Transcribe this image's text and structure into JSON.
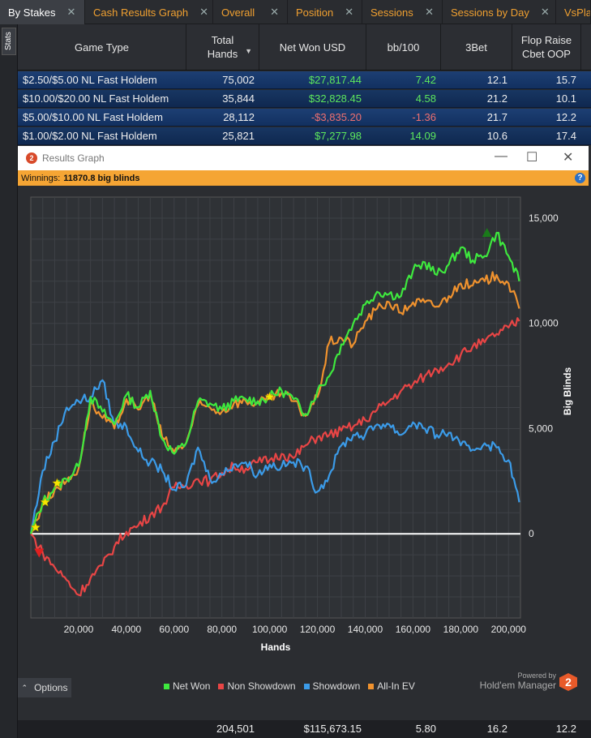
{
  "tabs": [
    {
      "label": "By Stakes",
      "active": true,
      "closable": true
    },
    {
      "label": "Cash Results Graph",
      "active": false,
      "closable": true
    },
    {
      "label": "Overall",
      "active": false,
      "closable": true
    },
    {
      "label": "Position",
      "active": false,
      "closable": true
    },
    {
      "label": "Sessions",
      "active": false,
      "closable": true
    },
    {
      "label": "Sessions by Day",
      "active": false,
      "closable": true
    },
    {
      "label": "VsPlay",
      "active": false,
      "closable": false
    }
  ],
  "sidebar": {
    "stats_label": "Stats"
  },
  "table": {
    "columns": [
      "Game Type",
      "Total Hands",
      "Net Won USD",
      "bb/100",
      "3Bet",
      "Flop Raise Cbet OOP"
    ],
    "rows": [
      {
        "game_type": "$2.50/$5.00 NL Fast Holdem",
        "hands": "75,002",
        "net_won": "$27,817.44",
        "bb100": "7.42",
        "threebet": "12.1",
        "flop_raise": "15.7",
        "sign": "pos"
      },
      {
        "game_type": "$10.00/$20.00 NL Fast Holdem",
        "hands": "35,844",
        "net_won": "$32,828.45",
        "bb100": "4.58",
        "threebet": "21.2",
        "flop_raise": "10.1",
        "sign": "pos"
      },
      {
        "game_type": "$5.00/$10.00 NL Fast Holdem",
        "hands": "28,112",
        "net_won": "-$3,835.20",
        "bb100": "-1.36",
        "threebet": "21.7",
        "flop_raise": "12.2",
        "sign": "neg"
      },
      {
        "game_type": "$1.00/$2.00 NL Fast Holdem",
        "hands": "25,821",
        "net_won": "$7,277.98",
        "bb100": "14.09",
        "threebet": "10.6",
        "flop_raise": "17.4",
        "sign": "pos"
      }
    ],
    "totals": {
      "hands": "204,501",
      "net_won": "$115,673.15",
      "bb100": "5.80",
      "threebet": "16.2",
      "flop_raise": "12.2"
    }
  },
  "graph_window": {
    "title": "Results Graph",
    "winnings_label": "Winnings:",
    "winnings_value": "11870.8 big blinds",
    "options_label": "Options",
    "powered_by": "Powered by",
    "brand": "Hold'em Manager"
  },
  "chart_data": {
    "type": "line",
    "xlabel": "Hands",
    "ylabel": "Big Blinds",
    "xlim": [
      0,
      205000
    ],
    "ylim": [
      -4000,
      16000
    ],
    "x_ticks": [
      20000,
      40000,
      60000,
      80000,
      100000,
      120000,
      140000,
      160000,
      180000,
      200000
    ],
    "x_tick_labels": [
      "20,000",
      "40,000",
      "60,000",
      "80,000",
      "100,000",
      "120,000",
      "140,000",
      "160,000",
      "180,000",
      "200,000"
    ],
    "y_ticks": [
      0,
      5000,
      10000,
      15000
    ],
    "y_tick_labels": [
      "0",
      "5,000",
      "10,000",
      "15,000"
    ],
    "x": [
      0,
      5000,
      10000,
      15000,
      20000,
      25000,
      30000,
      35000,
      40000,
      45000,
      50000,
      55000,
      60000,
      65000,
      70000,
      75000,
      80000,
      85000,
      90000,
      95000,
      100000,
      105000,
      110000,
      115000,
      120000,
      125000,
      130000,
      135000,
      140000,
      145000,
      150000,
      155000,
      160000,
      165000,
      170000,
      175000,
      180000,
      185000,
      190000,
      195000,
      200000,
      204501
    ],
    "series": [
      {
        "name": "Net Won",
        "color": "#3ee83e",
        "values": [
          0,
          1500,
          2200,
          2600,
          3200,
          6500,
          5800,
          5200,
          6600,
          6000,
          6800,
          4500,
          3800,
          4300,
          6300,
          6200,
          5900,
          6300,
          6400,
          6300,
          6500,
          6800,
          6400,
          5700,
          6800,
          7500,
          9000,
          10000,
          10900,
          11500,
          11400,
          11300,
          12500,
          12900,
          12300,
          12800,
          13600,
          13000,
          13200,
          14300,
          13200,
          12000
        ]
      },
      {
        "name": "Non Showdown",
        "color": "#e84545",
        "values": [
          0,
          -900,
          -1600,
          -2200,
          -2900,
          -2100,
          -1500,
          -600,
          100,
          400,
          900,
          1300,
          2200,
          2300,
          2600,
          2500,
          2900,
          3200,
          3100,
          3400,
          3500,
          3800,
          3600,
          4200,
          4600,
          4700,
          4900,
          5100,
          5400,
          5900,
          6300,
          6800,
          7100,
          7500,
          7800,
          8100,
          8500,
          8900,
          9100,
          9500,
          9800,
          10100
        ]
      },
      {
        "name": "Showdown",
        "color": "#3b9be8",
        "values": [
          0,
          3000,
          4400,
          6000,
          6300,
          6500,
          7300,
          5200,
          5100,
          3900,
          3400,
          3000,
          2100,
          2300,
          4100,
          2600,
          2800,
          3300,
          3400,
          2800,
          3300,
          3200,
          3400,
          3200,
          2000,
          2800,
          4200,
          4700,
          4700,
          5200,
          5200,
          4700,
          5300,
          5000,
          4700,
          4800,
          4200,
          4000,
          4300,
          4100,
          3500,
          1500
        ]
      },
      {
        "name": "All-In EV",
        "color": "#f0922e",
        "values": [
          0,
          1400,
          2100,
          2500,
          3100,
          6200,
          5500,
          5000,
          6400,
          5900,
          6700,
          4600,
          3900,
          4300,
          6100,
          6000,
          5800,
          6200,
          6300,
          6200,
          6400,
          6700,
          6300,
          5600,
          6500,
          9100,
          9300,
          9000,
          10100,
          10700,
          11000,
          10500,
          11000,
          11000,
          10800,
          11300,
          11900,
          11800,
          12000,
          12300,
          11900,
          10700
        ]
      }
    ],
    "markers": [
      {
        "type": "star",
        "color": "#f6e600",
        "x": 2000,
        "y": 300
      },
      {
        "type": "star",
        "color": "#f6e600",
        "x": 6000,
        "y": 1500
      },
      {
        "type": "star",
        "color": "#f6e600",
        "x": 11000,
        "y": 2400
      },
      {
        "type": "star",
        "color": "#f6e600",
        "x": 100000,
        "y": 6500
      },
      {
        "type": "triangle-down",
        "color": "#e02020",
        "x": 3500,
        "y": -900
      },
      {
        "type": "triangle-up",
        "color": "#1a7a1a",
        "x": 191000,
        "y": 14300
      }
    ],
    "grid": true,
    "legend_position": "bottom"
  },
  "colors": {
    "accent_orange": "#f5a534",
    "row_blue": "#1d3f73",
    "positive": "#5de85d",
    "negative": "#f07070",
    "zero_line": "#ffffff"
  }
}
